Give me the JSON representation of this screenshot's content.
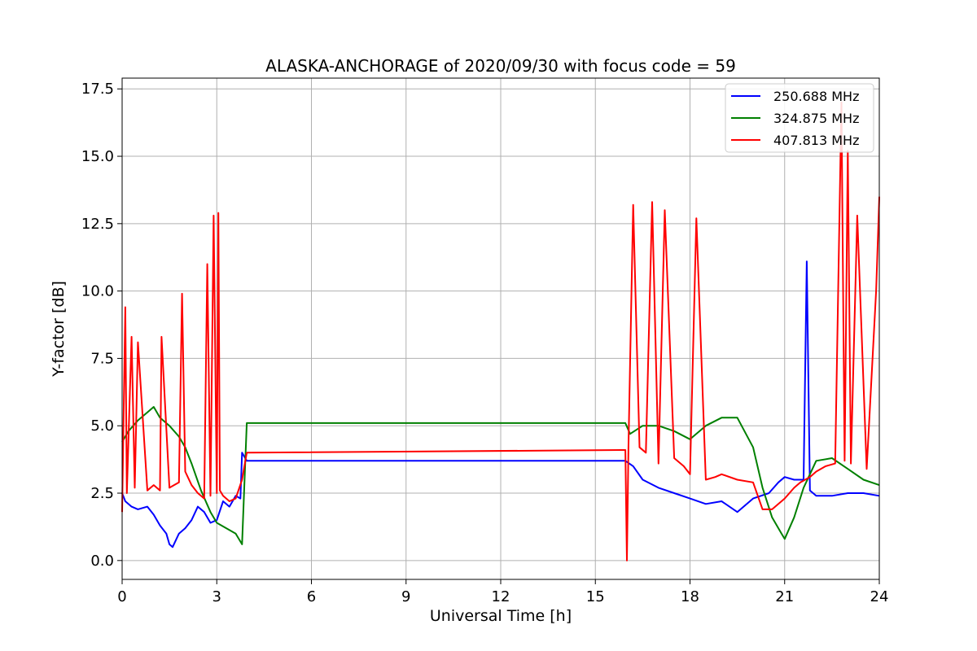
{
  "chart_data": {
    "type": "line",
    "title": "ALASKA-ANCHORAGE of 2020/09/30 with focus code = 59",
    "xlabel": "Universal Time [h]",
    "ylabel": "Y-factor [dB]",
    "xlim": [
      0,
      24
    ],
    "ylim": [
      -0.7,
      17.9
    ],
    "x_ticks": [
      0,
      3,
      6,
      9,
      12,
      15,
      18,
      21,
      24
    ],
    "x_tick_labels": [
      "0",
      "3",
      "6",
      "9",
      "12",
      "15",
      "18",
      "21",
      "24"
    ],
    "y_ticks": [
      0.0,
      2.5,
      5.0,
      7.5,
      10.0,
      12.5,
      15.0,
      17.5
    ],
    "y_tick_labels": [
      "0.0",
      "2.5",
      "5.0",
      "7.5",
      "10.0",
      "12.5",
      "15.0",
      "17.5"
    ],
    "grid": true,
    "legend_position": "top-right",
    "series": [
      {
        "name": "250.688 MHz",
        "color": "#0000ff",
        "x": [
          0,
          0.1,
          0.3,
          0.5,
          0.8,
          1.0,
          1.2,
          1.4,
          1.5,
          1.6,
          1.8,
          2.0,
          2.2,
          2.4,
          2.6,
          2.8,
          3.0,
          3.2,
          3.4,
          3.6,
          3.75,
          3.8,
          3.95,
          15.95,
          16.2,
          16.5,
          17.0,
          17.5,
          18.0,
          18.5,
          19.0,
          19.5,
          20.0,
          20.5,
          20.8,
          21.0,
          21.3,
          21.6,
          21.7,
          21.8,
          22.0,
          22.5,
          23.0,
          23.5,
          24.0
        ],
        "y": [
          2.5,
          2.2,
          2.0,
          1.9,
          2.0,
          1.7,
          1.3,
          1.0,
          0.6,
          0.5,
          1.0,
          1.2,
          1.5,
          2.0,
          1.8,
          1.4,
          1.5,
          2.2,
          2.0,
          2.4,
          2.3,
          4.0,
          3.7,
          3.7,
          3.5,
          3.0,
          2.7,
          2.5,
          2.3,
          2.1,
          2.2,
          1.8,
          2.3,
          2.5,
          2.9,
          3.1,
          3.0,
          3.0,
          11.1,
          2.6,
          2.4,
          2.4,
          2.5,
          2.5,
          2.4
        ]
      },
      {
        "name": "324.875 MHz",
        "color": "#008000",
        "x": [
          0,
          0.2,
          0.5,
          0.8,
          1.0,
          1.2,
          1.5,
          1.8,
          2.0,
          2.2,
          2.5,
          2.8,
          3.0,
          3.3,
          3.6,
          3.8,
          3.95,
          15.95,
          16.1,
          16.5,
          17.0,
          17.5,
          18.0,
          18.5,
          19.0,
          19.5,
          20.0,
          20.3,
          20.6,
          20.9,
          21.0,
          21.3,
          21.6,
          22.0,
          22.5,
          23.0,
          23.5,
          24.0
        ],
        "y": [
          4.4,
          4.8,
          5.2,
          5.5,
          5.7,
          5.3,
          5.0,
          4.6,
          4.2,
          3.6,
          2.6,
          1.8,
          1.4,
          1.2,
          1.0,
          0.6,
          5.1,
          5.1,
          4.7,
          5.0,
          5.0,
          4.8,
          4.5,
          5.0,
          5.3,
          5.3,
          4.2,
          2.7,
          1.6,
          1.0,
          0.8,
          1.6,
          2.7,
          3.7,
          3.8,
          3.4,
          3.0,
          2.8
        ]
      },
      {
        "name": "407.813 MHz",
        "color": "#ff0000",
        "x": [
          0,
          0.1,
          0.15,
          0.3,
          0.4,
          0.5,
          0.8,
          1.0,
          1.2,
          1.25,
          1.5,
          1.8,
          1.9,
          2.0,
          2.2,
          2.4,
          2.6,
          2.7,
          2.8,
          2.9,
          3.0,
          3.05,
          3.1,
          3.2,
          3.4,
          3.6,
          3.8,
          3.95,
          15.95,
          16.0,
          16.05,
          16.2,
          16.4,
          16.6,
          16.8,
          17.0,
          17.2,
          17.5,
          17.8,
          18.0,
          18.2,
          18.5,
          18.8,
          19.0,
          19.5,
          20.0,
          20.3,
          20.6,
          21.0,
          21.3,
          21.5,
          21.8,
          22.0,
          22.3,
          22.6,
          22.8,
          22.9,
          23.0,
          23.1,
          23.3,
          23.6,
          23.9,
          24.0
        ],
        "y": [
          1.8,
          9.4,
          2.5,
          8.3,
          2.7,
          8.1,
          2.6,
          2.8,
          2.6,
          8.3,
          2.7,
          2.9,
          9.9,
          3.3,
          2.8,
          2.5,
          2.3,
          11.0,
          2.4,
          12.8,
          2.5,
          12.9,
          2.6,
          2.4,
          2.2,
          2.3,
          3.0,
          4.0,
          4.1,
          0.0,
          4.2,
          13.2,
          4.2,
          4.0,
          13.3,
          3.6,
          13.0,
          3.8,
          3.5,
          3.2,
          12.7,
          3.0,
          3.1,
          3.2,
          3.0,
          2.9,
          1.9,
          1.9,
          2.3,
          2.7,
          2.9,
          3.1,
          3.3,
          3.5,
          3.6,
          17.0,
          3.7,
          15.2,
          3.6,
          12.8,
          3.4,
          10.0,
          13.5
        ]
      }
    ]
  }
}
